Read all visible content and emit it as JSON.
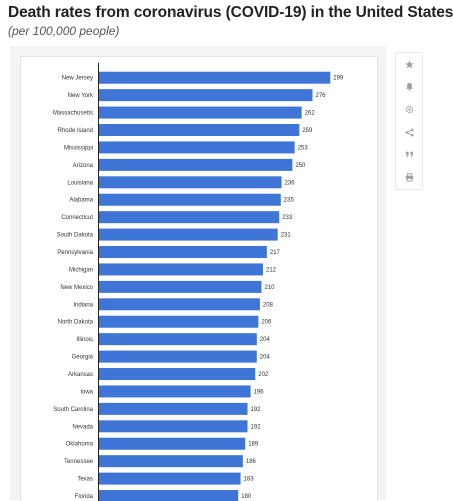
{
  "title": "Death rates from coronavirus (COVID-19) in the United States",
  "subtitle": "(per 100,000 people)",
  "toolbar": {
    "icons": [
      "star-icon",
      "bell-icon",
      "gear-icon",
      "share-icon",
      "quote-icon",
      "print-icon"
    ]
  },
  "colors": {
    "bar": "#3f75d6",
    "label": "#333333",
    "axis": "#222222"
  },
  "chart_data": {
    "type": "bar",
    "orientation": "horizontal",
    "categories": [
      "New Jersey",
      "New York",
      "Massachusetts",
      "Rhode Island",
      "Mississippi",
      "Arizona",
      "Louisiana",
      "Alabama",
      "Connecticut",
      "South Dakota",
      "Pennsylvania",
      "Michigan",
      "New Mexico",
      "Indiana",
      "North Dakota",
      "Illinois",
      "Georgia",
      "Arkansas",
      "Iowa",
      "South Carolina",
      "Nevada",
      "Oklahoma",
      "Tennessee",
      "Texas",
      "Florida"
    ],
    "values": [
      299,
      276,
      262,
      259,
      253,
      250,
      236,
      235,
      233,
      231,
      217,
      212,
      210,
      208,
      206,
      204,
      204,
      202,
      196,
      192,
      192,
      189,
      186,
      183,
      180
    ],
    "title": "Death rates from coronavirus (COVID-19) in the United States",
    "subtitle": "(per 100,000 people)",
    "xlim": [
      0,
      340
    ],
    "grid": false,
    "legend": "none"
  }
}
